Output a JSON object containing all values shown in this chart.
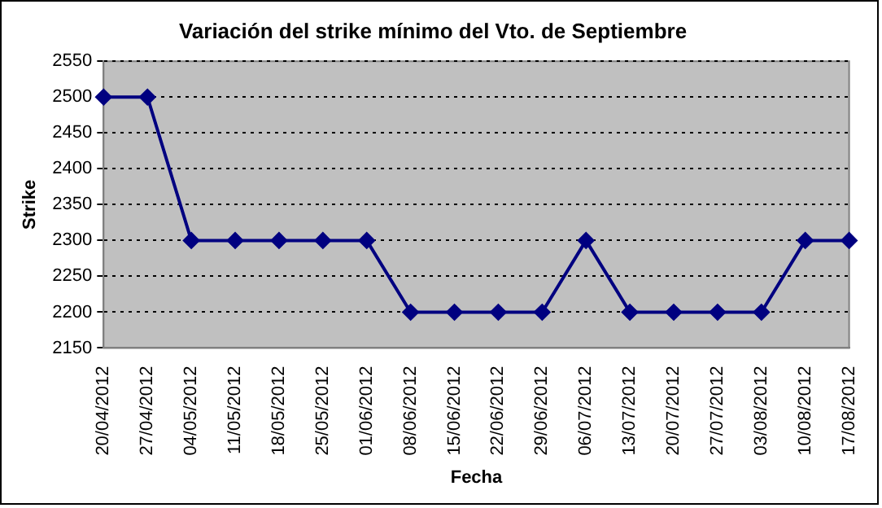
{
  "chart_data": {
    "type": "line",
    "title": "Variación del strike mínimo del Vto. de Septiembre",
    "xlabel": "Fecha",
    "ylabel": "Strike",
    "categories": [
      "20/04/2012",
      "27/04/2012",
      "04/05/2012",
      "11/05/2012",
      "18/05/2012",
      "25/05/2012",
      "01/06/2012",
      "08/06/2012",
      "15/06/2012",
      "22/06/2012",
      "29/06/2012",
      "06/07/2012",
      "13/07/2012",
      "20/07/2012",
      "27/07/2012",
      "03/08/2012",
      "10/08/2012",
      "17/08/2012"
    ],
    "series": [
      {
        "color": "#000080",
        "values": [
          2500,
          2500,
          2300,
          2300,
          2300,
          2300,
          2300,
          2200,
          2200,
          2200,
          2200,
          2300,
          2200,
          2200,
          2200,
          2200,
          2300,
          2300
        ]
      }
    ],
    "ylim": [
      2150,
      2550
    ],
    "yticks": [
      2150,
      2200,
      2250,
      2300,
      2350,
      2400,
      2450,
      2500,
      2550
    ],
    "grid": "y",
    "legend": false,
    "marker": "diamond",
    "line_style": "solid"
  }
}
